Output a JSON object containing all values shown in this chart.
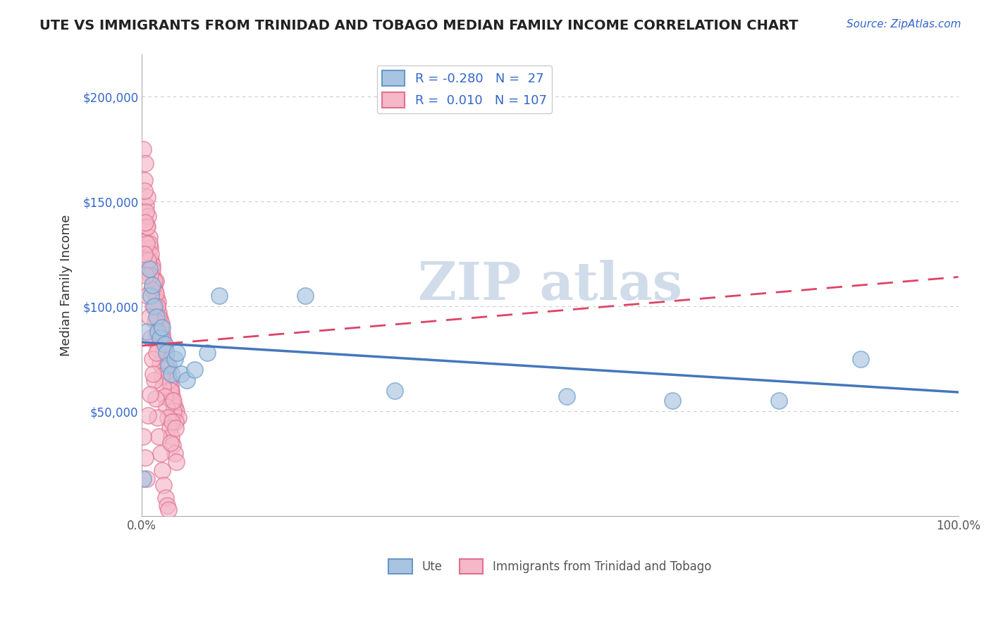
{
  "title": "UTE VS IMMIGRANTS FROM TRINIDAD AND TOBAGO MEDIAN FAMILY INCOME CORRELATION CHART",
  "source": "Source: ZipAtlas.com",
  "ylabel": "Median Family Income",
  "xlim": [
    0,
    1.0
  ],
  "ylim": [
    0,
    220000
  ],
  "xticks": [
    0.0,
    0.1,
    0.2,
    0.3,
    0.4,
    0.5,
    0.6,
    0.7,
    0.8,
    0.9,
    1.0
  ],
  "xticklabels": [
    "0.0%",
    "",
    "",
    "",
    "",
    "",
    "",
    "",
    "",
    "",
    "100.0%"
  ],
  "yticks": [
    0,
    50000,
    100000,
    150000,
    200000
  ],
  "yticklabels": [
    "",
    "$50,000",
    "$100,000",
    "$150,000",
    "$200,000"
  ],
  "grid_color": "#cccccc",
  "background_color": "#ffffff",
  "ute_color": "#a8c4e0",
  "ute_edge_color": "#6699cc",
  "tt_color": "#f4b8c8",
  "tt_edge_color": "#e07090",
  "ute_R": -0.28,
  "ute_N": 27,
  "tt_R": 0.01,
  "tt_N": 107,
  "ute_line_color": "#4477bb",
  "tt_line_color": "#dd4466",
  "watermark_color": "#ccd9e8",
  "legend_label_ute": "Ute",
  "legend_label_tt": "Immigrants from Trinidad and Tobago",
  "ute_x": [
    0.002,
    0.006,
    0.009,
    0.011,
    0.013,
    0.015,
    0.018,
    0.02,
    0.022,
    0.025,
    0.028,
    0.03,
    0.033,
    0.036,
    0.04,
    0.043,
    0.048,
    0.055,
    0.065,
    0.08,
    0.095,
    0.2,
    0.31,
    0.52,
    0.65,
    0.78,
    0.88
  ],
  "ute_y": [
    18000,
    88000,
    118000,
    105000,
    110000,
    100000,
    95000,
    88000,
    85000,
    90000,
    82000,
    78000,
    72000,
    68000,
    75000,
    78000,
    68000,
    65000,
    70000,
    78000,
    105000,
    105000,
    60000,
    57000,
    55000,
    55000,
    75000
  ],
  "tt_x": [
    0.002,
    0.003,
    0.004,
    0.005,
    0.006,
    0.007,
    0.008,
    0.009,
    0.01,
    0.011,
    0.012,
    0.013,
    0.014,
    0.015,
    0.016,
    0.017,
    0.018,
    0.019,
    0.02,
    0.021,
    0.022,
    0.023,
    0.024,
    0.025,
    0.026,
    0.027,
    0.028,
    0.029,
    0.03,
    0.031,
    0.032,
    0.033,
    0.034,
    0.035,
    0.036,
    0.037,
    0.038,
    0.04,
    0.042,
    0.045,
    0.003,
    0.005,
    0.007,
    0.009,
    0.011,
    0.013,
    0.015,
    0.017,
    0.019,
    0.021,
    0.023,
    0.025,
    0.027,
    0.029,
    0.031,
    0.033,
    0.035,
    0.037,
    0.039,
    0.041,
    0.004,
    0.006,
    0.008,
    0.01,
    0.012,
    0.014,
    0.016,
    0.018,
    0.02,
    0.022,
    0.024,
    0.026,
    0.028,
    0.03,
    0.032,
    0.034,
    0.036,
    0.038,
    0.04,
    0.042,
    0.003,
    0.005,
    0.007,
    0.009,
    0.011,
    0.013,
    0.015,
    0.017,
    0.019,
    0.021,
    0.023,
    0.025,
    0.027,
    0.029,
    0.031,
    0.033,
    0.035,
    0.037,
    0.039,
    0.041,
    0.002,
    0.004,
    0.006,
    0.008,
    0.01,
    0.014,
    0.018
  ],
  "tt_y": [
    175000,
    160000,
    168000,
    148000,
    138000,
    152000,
    143000,
    133000,
    128000,
    122000,
    118000,
    120000,
    114000,
    110000,
    107000,
    112000,
    104000,
    100000,
    102000,
    97000,
    94000,
    90000,
    92000,
    87000,
    84000,
    82000,
    80000,
    77000,
    74000,
    72000,
    70000,
    67000,
    65000,
    62000,
    60000,
    57000,
    54000,
    52000,
    50000,
    47000,
    155000,
    145000,
    138000,
    130000,
    125000,
    118000,
    112000,
    106000,
    100000,
    95000,
    90000,
    85000,
    80000,
    75000,
    70000,
    65000,
    60000,
    55000,
    50000,
    45000,
    140000,
    130000,
    122000,
    115000,
    108000,
    100000,
    93000,
    87000,
    80000,
    73000,
    67000,
    62000,
    57000,
    52000,
    47000,
    42000,
    38000,
    34000,
    30000,
    26000,
    125000,
    115000,
    105000,
    95000,
    85000,
    75000,
    65000,
    56000,
    47000,
    38000,
    30000,
    22000,
    15000,
    9000,
    5000,
    3000,
    35000,
    45000,
    55000,
    42000,
    38000,
    28000,
    18000,
    48000,
    58000,
    68000,
    78000
  ]
}
